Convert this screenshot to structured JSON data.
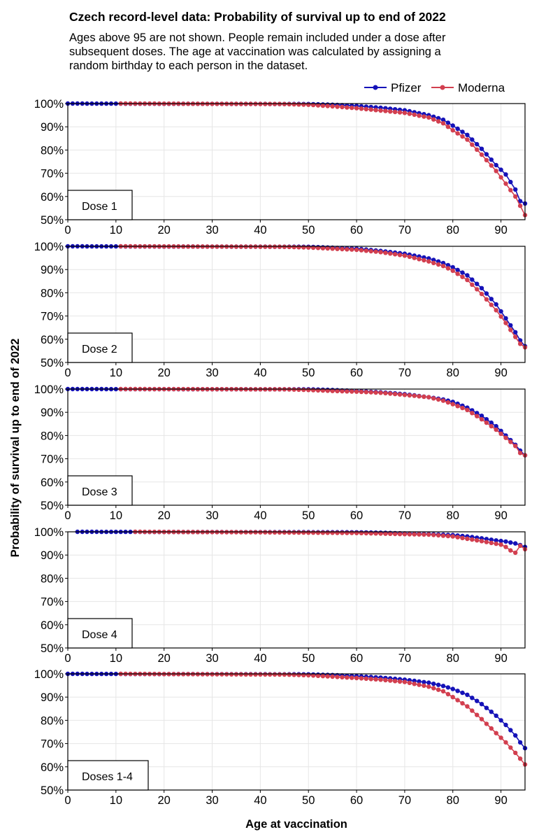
{
  "title": "Czech record-level data: Probability of survival up to end of 2022",
  "subtitle_lines": [
    "Ages above 95 are not shown. People remain included under a dose after",
    "subsequent doses. The age at vaccination was calculated by assigning a",
    "random birthday to each person in the dataset."
  ],
  "colors": {
    "pfizer": "#1512b8",
    "moderna": "#d23f4f",
    "grid": "#e6e6e6"
  },
  "chart_data": {
    "type": "line",
    "ylabel": "Probability of survival up to end of 2022",
    "xlabel": "Age at vaccination",
    "legend_placement": "top-right",
    "xlim": [
      0,
      95
    ],
    "ylim": [
      50,
      100
    ],
    "x_ticks": [
      0,
      10,
      20,
      30,
      40,
      50,
      60,
      70,
      80,
      90
    ],
    "y_tick_labels": [
      "50%",
      "60%",
      "70%",
      "80%",
      "90%",
      "100%"
    ],
    "y_ticks": [
      50,
      60,
      70,
      80,
      90,
      100
    ],
    "legend": [
      "Pfizer",
      "Moderna"
    ],
    "panels": [
      {
        "label": "Dose 1",
        "series": [
          {
            "name": "Pfizer",
            "x_start": 0,
            "x_end": 95,
            "curve": [
              [
                0,
                100
              ],
              [
                50,
                99.8
              ],
              [
                55,
                99.5
              ],
              [
                60,
                99.0
              ],
              [
                65,
                98.2
              ],
              [
                70,
                97.1
              ],
              [
                75,
                95.0
              ],
              [
                78,
                93.0
              ],
              [
                80,
                90.5
              ],
              [
                83,
                86.5
              ],
              [
                86,
                80.5
              ],
              [
                89,
                73.5
              ],
              [
                91,
                69.5
              ],
              [
                93,
                63.0
              ],
              [
                94,
                58.0
              ],
              [
                95,
                57.0
              ]
            ]
          },
          {
            "name": "Moderna",
            "x_start": 11,
            "x_end": 95,
            "curve": [
              [
                11,
                100
              ],
              [
                45,
                99.8
              ],
              [
                50,
                99.5
              ],
              [
                55,
                98.8
              ],
              [
                60,
                98.0
              ],
              [
                65,
                97.0
              ],
              [
                70,
                96.0
              ],
              [
                75,
                94.0
              ],
              [
                78,
                91.5
              ],
              [
                80,
                88.5
              ],
              [
                83,
                84.5
              ],
              [
                86,
                78.0
              ],
              [
                89,
                71.0
              ],
              [
                91,
                65.5
              ],
              [
                93,
                60.0
              ],
              [
                94,
                56.0
              ],
              [
                95,
                52.0
              ]
            ]
          }
        ]
      },
      {
        "label": "Dose 2",
        "series": [
          {
            "name": "Pfizer",
            "x_start": 0,
            "x_end": 95,
            "curve": [
              [
                0,
                100
              ],
              [
                50,
                99.8
              ],
              [
                55,
                99.4
              ],
              [
                60,
                99.0
              ],
              [
                65,
                98.0
              ],
              [
                70,
                96.8
              ],
              [
                75,
                94.8
              ],
              [
                78,
                92.8
              ],
              [
                80,
                91.0
              ],
              [
                83,
                87.5
              ],
              [
                86,
                82.0
              ],
              [
                89,
                75.0
              ],
              [
                91,
                69.0
              ],
              [
                93,
                63.0
              ],
              [
                94,
                59.5
              ],
              [
                95,
                57.0
              ]
            ]
          },
          {
            "name": "Moderna",
            "x_start": 11,
            "x_end": 95,
            "curve": [
              [
                11,
                100
              ],
              [
                45,
                99.8
              ],
              [
                50,
                99.5
              ],
              [
                55,
                99.0
              ],
              [
                60,
                98.5
              ],
              [
                65,
                97.5
              ],
              [
                70,
                96.0
              ],
              [
                75,
                93.5
              ],
              [
                78,
                91.5
              ],
              [
                80,
                89.5
              ],
              [
                83,
                85.5
              ],
              [
                86,
                79.5
              ],
              [
                89,
                72.5
              ],
              [
                91,
                67.0
              ],
              [
                93,
                61.0
              ],
              [
                94,
                58.0
              ],
              [
                95,
                56.5
              ]
            ]
          }
        ]
      },
      {
        "label": "Dose 3",
        "series": [
          {
            "name": "Pfizer",
            "x_start": 0,
            "x_end": 95,
            "curve": [
              [
                0,
                100
              ],
              [
                50,
                99.9
              ],
              [
                55,
                99.6
              ],
              [
                60,
                99.2
              ],
              [
                65,
                98.6
              ],
              [
                70,
                97.8
              ],
              [
                75,
                96.5
              ],
              [
                78,
                95.5
              ],
              [
                80,
                94.5
              ],
              [
                83,
                92.0
              ],
              [
                86,
                88.5
              ],
              [
                89,
                84.0
              ],
              [
                91,
                80.0
              ],
              [
                93,
                76.0
              ],
              [
                94,
                73.5
              ],
              [
                95,
                71.5
              ]
            ]
          },
          {
            "name": "Moderna",
            "x_start": 11,
            "x_end": 95,
            "curve": [
              [
                11,
                100
              ],
              [
                45,
                99.9
              ],
              [
                50,
                99.6
              ],
              [
                55,
                99.2
              ],
              [
                60,
                98.9
              ],
              [
                65,
                98.4
              ],
              [
                70,
                97.5
              ],
              [
                75,
                96.5
              ],
              [
                78,
                95.0
              ],
              [
                80,
                93.5
              ],
              [
                83,
                91.0
              ],
              [
                86,
                87.0
              ],
              [
                89,
                82.5
              ],
              [
                91,
                79.0
              ],
              [
                93,
                75.5
              ],
              [
                94,
                72.5
              ],
              [
                95,
                71.5
              ]
            ]
          }
        ]
      },
      {
        "label": "Dose 4",
        "series": [
          {
            "name": "Pfizer",
            "x_start": 2,
            "x_end": 95,
            "curve": [
              [
                2,
                100
              ],
              [
                60,
                99.8
              ],
              [
                65,
                99.6
              ],
              [
                70,
                99.3
              ],
              [
                75,
                99.0
              ],
              [
                80,
                98.6
              ],
              [
                83,
                98.0
              ],
              [
                86,
                97.2
              ],
              [
                89,
                96.3
              ],
              [
                91,
                95.8
              ],
              [
                93,
                95.0
              ],
              [
                94,
                94.3
              ],
              [
                95,
                93.5
              ]
            ]
          },
          {
            "name": "Moderna",
            "x_start": 14,
            "x_end": 95,
            "curve": [
              [
                14,
                100
              ],
              [
                40,
                99.8
              ],
              [
                60,
                99.5
              ],
              [
                70,
                99.0
              ],
              [
                75,
                98.8
              ],
              [
                80,
                98.0
              ],
              [
                83,
                97.0
              ],
              [
                86,
                96.0
              ],
              [
                88,
                95.2
              ],
              [
                90,
                94.5
              ],
              [
                91,
                93.5
              ],
              [
                92,
                92.0
              ],
              [
                93,
                91.0
              ],
              [
                94,
                94.0
              ],
              [
                95,
                92.5
              ]
            ]
          }
        ]
      },
      {
        "label": "Doses 1-4",
        "series": [
          {
            "name": "Pfizer",
            "x_start": 0,
            "x_end": 95,
            "curve": [
              [
                0,
                100
              ],
              [
                50,
                99.8
              ],
              [
                55,
                99.5
              ],
              [
                60,
                99.0
              ],
              [
                65,
                98.4
              ],
              [
                70,
                97.5
              ],
              [
                75,
                96.2
              ],
              [
                78,
                94.8
              ],
              [
                80,
                93.5
              ],
              [
                83,
                91.0
              ],
              [
                86,
                87.0
              ],
              [
                89,
                82.0
              ],
              [
                91,
                78.0
              ],
              [
                93,
                73.5
              ],
              [
                94,
                70.5
              ],
              [
                95,
                68.0
              ]
            ]
          },
          {
            "name": "Moderna",
            "x_start": 11,
            "x_end": 95,
            "curve": [
              [
                11,
                100
              ],
              [
                45,
                99.7
              ],
              [
                50,
                99.4
              ],
              [
                55,
                98.8
              ],
              [
                60,
                98.2
              ],
              [
                65,
                97.5
              ],
              [
                70,
                96.5
              ],
              [
                75,
                94.5
              ],
              [
                78,
                92.5
              ],
              [
                80,
                90.0
              ],
              [
                83,
                86.0
              ],
              [
                86,
                80.5
              ],
              [
                89,
                74.5
              ],
              [
                91,
                70.5
              ],
              [
                93,
                66.0
              ],
              [
                94,
                63.5
              ],
              [
                95,
                61.0
              ]
            ]
          }
        ]
      }
    ]
  }
}
